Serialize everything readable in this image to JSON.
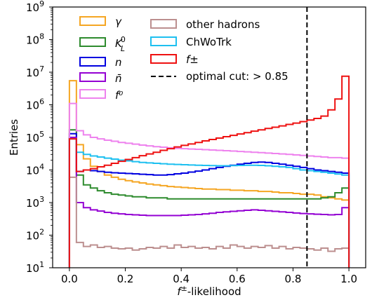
{
  "chart_data": {
    "type": "line",
    "histogram": true,
    "xlabel": "f±-likelihood",
    "ylabel": "Entries",
    "xlim": [
      -0.06,
      1.06
    ],
    "ylim": [
      10,
      1000000000
    ],
    "yscale": "log",
    "xticks": [
      "0.0",
      "0.2",
      "0.4",
      "0.6",
      "0.8",
      "1.0"
    ],
    "xtick_values": [
      0.0,
      0.2,
      0.4,
      0.6,
      0.8,
      1.0
    ],
    "ytick_exponents": [
      1,
      2,
      3,
      4,
      5,
      6,
      7,
      8,
      9
    ],
    "grid": false,
    "legend_placement": "top-left, two columns",
    "bin_edges": [
      0,
      0.025,
      0.05,
      0.075,
      0.1,
      0.125,
      0.15,
      0.175,
      0.2,
      0.225,
      0.25,
      0.275,
      0.3,
      0.325,
      0.35,
      0.375,
      0.4,
      0.425,
      0.45,
      0.475,
      0.5,
      0.525,
      0.55,
      0.575,
      0.6,
      0.625,
      0.65,
      0.675,
      0.7,
      0.725,
      0.75,
      0.775,
      0.8,
      0.825,
      0.85,
      0.875,
      0.9,
      0.925,
      0.95,
      0.975,
      1.0
    ],
    "series": [
      {
        "name": "γ",
        "color": "#f5a623",
        "values": [
          5500000,
          60000,
          22000,
          13000,
          9000,
          7000,
          6000,
          5200,
          4700,
          4300,
          4000,
          3700,
          3500,
          3300,
          3100,
          3000,
          2900,
          2800,
          2700,
          2600,
          2600,
          2500,
          2500,
          2400,
          2400,
          2300,
          2300,
          2200,
          2200,
          2100,
          2000,
          2000,
          1900,
          1800,
          1800,
          1700,
          1500,
          1400,
          1300,
          1200
        ]
      },
      {
        "name": "K_L^0",
        "color": "#2e8b2e",
        "values": [
          170000,
          7000,
          3500,
          2800,
          2300,
          2000,
          1800,
          1700,
          1600,
          1500,
          1500,
          1400,
          1400,
          1400,
          1300,
          1300,
          1300,
          1300,
          1300,
          1300,
          1300,
          1300,
          1300,
          1300,
          1300,
          1300,
          1300,
          1300,
          1300,
          1300,
          1300,
          1300,
          1300,
          1300,
          1300,
          1300,
          1400,
          1500,
          2000,
          2800
        ]
      },
      {
        "name": "n",
        "color": "#0000e0",
        "values": [
          130000,
          9000,
          10000,
          9500,
          9000,
          8500,
          8200,
          8000,
          7800,
          7600,
          7400,
          7200,
          7000,
          7000,
          7200,
          7600,
          8000,
          8600,
          9200,
          10000,
          11000,
          12000,
          13000,
          14000,
          15000,
          16000,
          17000,
          17500,
          17000,
          16000,
          15000,
          14000,
          13000,
          12000,
          11000,
          10000,
          9500,
          9000,
          8500,
          8000
        ]
      },
      {
        "name": "n̄",
        "color": "#9400d3",
        "values": [
          100000,
          1000,
          700,
          600,
          550,
          500,
          470,
          450,
          430,
          420,
          410,
          400,
          400,
          400,
          400,
          400,
          410,
          420,
          430,
          450,
          470,
          500,
          520,
          540,
          560,
          580,
          600,
          580,
          560,
          540,
          520,
          500,
          480,
          460,
          450,
          440,
          430,
          420,
          430,
          700
        ]
      },
      {
        "name": "f⁰",
        "color": "#ee82ee",
        "values": [
          1100000,
          160000,
          120000,
          100000,
          90000,
          82000,
          76000,
          70000,
          66000,
          62000,
          58000,
          55000,
          52000,
          50000,
          48000,
          46000,
          45000,
          44000,
          43000,
          42000,
          41000,
          40000,
          39000,
          38000,
          37000,
          36000,
          35000,
          34000,
          33000,
          32000,
          31000,
          30000,
          29000,
          28000,
          27000,
          26000,
          25000,
          24000,
          24000,
          23000
        ]
      },
      {
        "name": "other hadrons",
        "color": "#bc8f8f",
        "values": [
          6000,
          60,
          45,
          50,
          42,
          45,
          40,
          38,
          40,
          35,
          38,
          42,
          40,
          45,
          40,
          50,
          42,
          45,
          40,
          42,
          38,
          45,
          40,
          50,
          45,
          40,
          45,
          42,
          48,
          40,
          45,
          38,
          42,
          40,
          38,
          35,
          40,
          32,
          38,
          40
        ]
      },
      {
        "name": "ChWoTrk",
        "color": "#1ec0f0",
        "values": [
          90000,
          35000,
          30000,
          27000,
          25000,
          23000,
          21500,
          20000,
          19000,
          18000,
          17000,
          16500,
          16000,
          15500,
          15000,
          14800,
          14500,
          14200,
          14000,
          13800,
          13600,
          13500,
          13500,
          13600,
          13800,
          14000,
          14000,
          13800,
          13500,
          13000,
          12500,
          12000,
          11000,
          10000,
          9500,
          9000,
          8500,
          8000,
          7500,
          7000
        ]
      },
      {
        "name": "f±",
        "color": "#ee1111",
        "values": [
          90000,
          9000,
          10000,
          11000,
          12500,
          14000,
          16000,
          18500,
          21000,
          24000,
          27500,
          31000,
          35000,
          40000,
          45000,
          51000,
          57000,
          63000,
          70000,
          78000,
          86000,
          95000,
          105000,
          115000,
          127000,
          140000,
          155000,
          170000,
          188000,
          205000,
          225000,
          250000,
          275000,
          305000,
          340000,
          380000,
          450000,
          700000,
          1500000,
          7500000
        ]
      }
    ],
    "annotations": [
      {
        "type": "vline",
        "x": 0.85,
        "style": "dashed",
        "color": "#000000",
        "label": "optimal cut: > 0.85"
      }
    ]
  },
  "legend": {
    "col1": [
      "γ",
      "K",
      "n",
      "n̄",
      "f⁰"
    ],
    "kl_sub": "L",
    "kl_sup": "0",
    "other_hadrons": "other hadrons",
    "chwotrk": "ChWoTrk",
    "fpm": "f±",
    "cut": "optimal cut: > 0.85"
  },
  "axes": {
    "ylabel": "Entries",
    "xlabel_main": "f",
    "xlabel_sup": "±",
    "xlabel_tail": "-likelihood",
    "ytick_base": "10"
  }
}
